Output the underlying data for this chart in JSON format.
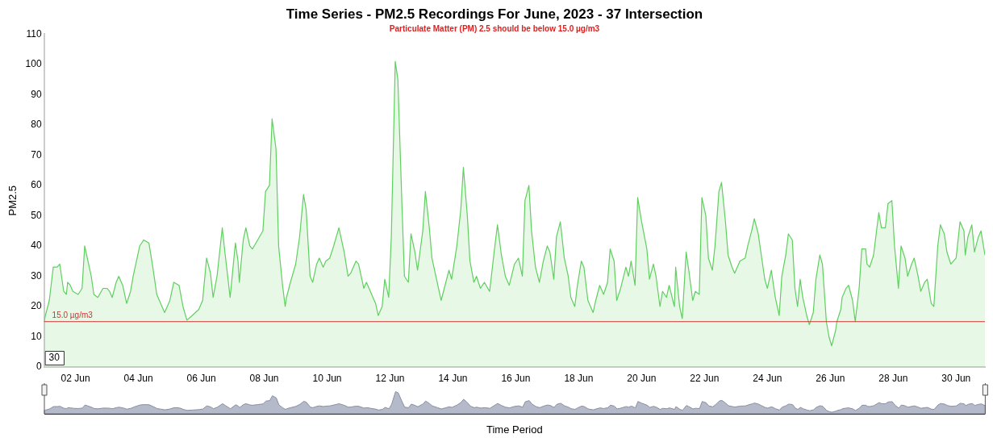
{
  "chart_data": {
    "type": "area",
    "title": "Time Series - PM2.5 Recordings For June, 2023 - 37 Intersection",
    "subtitle": "Particulate Matter (PM) 2.5 should be below 15.0 µg/m3",
    "xlabel": "Time Period",
    "ylabel": "PM2.5",
    "x": [
      "2023-06-01T00:00",
      "2023-06-01T01:00",
      "2023-06-01T04:00",
      "2023-06-01T07:00",
      "2023-06-01T10:00",
      "2023-06-01T12:00",
      "2023-06-01T13:00",
      "2023-06-01T15:00",
      "2023-06-01T17:00",
      "2023-06-01T18:00",
      "2023-06-01T20:00",
      "2023-06-01T22:00",
      "2023-06-02T02:00",
      "2023-06-02T05:00",
      "2023-06-02T07:00",
      "2023-06-02T09:00",
      "2023-06-02T12:00",
      "2023-06-02T14:00",
      "2023-06-02T17:00",
      "2023-06-02T21:00",
      "2023-06-03T00:00",
      "2023-06-03T02:00",
      "2023-06-03T04:00",
      "2023-06-03T07:00",
      "2023-06-03T09:00",
      "2023-06-03T12:00",
      "2023-06-03T15:00",
      "2023-06-03T18:00",
      "2023-06-03T20:00",
      "2023-06-03T23:00",
      "2023-06-04T01:00",
      "2023-06-04T04:00",
      "2023-06-04T08:00",
      "2023-06-04T11:00",
      "2023-06-04T14:00",
      "2023-06-04T17:00",
      "2023-06-04T20:00",
      "2023-06-05T00:00",
      "2023-06-05T03:00",
      "2023-06-05T07:00",
      "2023-06-05T10:00",
      "2023-06-05T13:00",
      "2023-06-05T17:00",
      "2023-06-05T22:00",
      "2023-06-06T01:00",
      "2023-06-06T04:00",
      "2023-06-06T07:00",
      "2023-06-06T09:00",
      "2023-06-06T12:00",
      "2023-06-06T16:00",
      "2023-06-06T18:00",
      "2023-06-06T22:00",
      "2023-06-07T02:00",
      "2023-06-07T04:00",
      "2023-06-07T05:00",
      "2023-06-07T08:00",
      "2023-06-07T10:00",
      "2023-06-07T13:00",
      "2023-06-07T15:00",
      "2023-06-07T19:00",
      "2023-06-07T23:00",
      "2023-06-08T01:00",
      "2023-06-08T04:00",
      "2023-06-08T06:00",
      "2023-06-08T09:00",
      "2023-06-08T11:00",
      "2023-06-08T14:00",
      "2023-06-08T16:00",
      "2023-06-08T17:00",
      "2023-06-08T20:00",
      "2023-06-09T00:00",
      "2023-06-09T03:00",
      "2023-06-09T06:00",
      "2023-06-09T08:00",
      "2023-06-09T11:00",
      "2023-06-09T13:00",
      "2023-06-09T16:00",
      "2023-06-09T18:00",
      "2023-06-09T21:00",
      "2023-06-09T23:00",
      "2023-06-10T02:00",
      "2023-06-10T05:00",
      "2023-06-10T09:00",
      "2023-06-10T13:00",
      "2023-06-10T16:00",
      "2023-06-10T18:00",
      "2023-06-10T22:00",
      "2023-06-11T00:00",
      "2023-06-11T04:00",
      "2023-06-11T06:00",
      "2023-06-11T09:00",
      "2023-06-11T13:00",
      "2023-06-11T15:00",
      "2023-06-11T18:00",
      "2023-06-11T20:00",
      "2023-06-11T23:00",
      "2023-06-12T01:00",
      "2023-06-12T04:00",
      "2023-06-12T06:00",
      "2023-06-12T09:00",
      "2023-06-12T11:00",
      "2023-06-12T14:00",
      "2023-06-12T16:00",
      "2023-06-12T19:00",
      "2023-06-12T21:00",
      "2023-06-13T01:00",
      "2023-06-13T03:00",
      "2023-06-13T06:00",
      "2023-06-13T08:00",
      "2023-06-13T12:00",
      "2023-06-13T15:00",
      "2023-06-13T18:00",
      "2023-06-13T21:00",
      "2023-06-13T23:00",
      "2023-06-14T03:00",
      "2023-06-14T06:00",
      "2023-06-14T08:00",
      "2023-06-14T11:00",
      "2023-06-14T13:00",
      "2023-06-14T16:00",
      "2023-06-14T18:00",
      "2023-06-14T21:00",
      "2023-06-15T00:00",
      "2023-06-15T04:00",
      "2023-06-15T08:00",
      "2023-06-15T10:00",
      "2023-06-15T13:00",
      "2023-06-15T16:00",
      "2023-06-15T19:00",
      "2023-06-15T23:00",
      "2023-06-16T02:00",
      "2023-06-16T05:00",
      "2023-06-16T07:00",
      "2023-06-16T10:00",
      "2023-06-16T12:00",
      "2023-06-16T15:00",
      "2023-06-16T18:00",
      "2023-06-16T21:00",
      "2023-06-17T00:00",
      "2023-06-17T02:00",
      "2023-06-17T05:00",
      "2023-06-17T07:00",
      "2023-06-17T10:00",
      "2023-06-17T13:00",
      "2023-06-17T16:00",
      "2023-06-17T18:00",
      "2023-06-17T21:00",
      "2023-06-17T23:00",
      "2023-06-18T02:00",
      "2023-06-18T04:00",
      "2023-06-18T07:00",
      "2023-06-18T11:00",
      "2023-06-18T13:00",
      "2023-06-18T16:00",
      "2023-06-18T19:00",
      "2023-06-18T22:00",
      "2023-06-19T00:00",
      "2023-06-19T03:00",
      "2023-06-19T05:00",
      "2023-06-19T08:00",
      "2023-06-19T12:00",
      "2023-06-19T14:00",
      "2023-06-19T16:00",
      "2023-06-19T19:00",
      "2023-06-19T21:00",
      "2023-06-20T00:00",
      "2023-06-20T04:00",
      "2023-06-20T06:00",
      "2023-06-20T09:00",
      "2023-06-20T11:00",
      "2023-06-20T14:00",
      "2023-06-20T16:00",
      "2023-06-20T19:00",
      "2023-06-20T21:00",
      "2023-06-21T01:00",
      "2023-06-21T02:00",
      "2023-06-21T05:00",
      "2023-06-21T07:00",
      "2023-06-21T10:00",
      "2023-06-21T12:00",
      "2023-06-21T15:00",
      "2023-06-21T17:00",
      "2023-06-21T20:00",
      "2023-06-21T22:00",
      "2023-06-22T01:00",
      "2023-06-22T03:00",
      "2023-06-22T06:00",
      "2023-06-22T08:00",
      "2023-06-22T11:00",
      "2023-06-22T13:00",
      "2023-06-22T16:00",
      "2023-06-22T18:00",
      "2023-06-22T21:00",
      "2023-06-22T23:00",
      "2023-06-23T03:00",
      "2023-06-23T07:00",
      "2023-06-23T09:00",
      "2023-06-23T12:00",
      "2023-06-23T14:00",
      "2023-06-23T17:00",
      "2023-06-23T19:00",
      "2023-06-23T22:00",
      "2023-06-24T00:00",
      "2023-06-24T03:00",
      "2023-06-24T06:00",
      "2023-06-24T09:00",
      "2023-06-24T11:00",
      "2023-06-24T14:00",
      "2023-06-24T16:00",
      "2023-06-24T19:00",
      "2023-06-24T21:00",
      "2023-06-24T23:00",
      "2023-06-25T01:00",
      "2023-06-25T03:00",
      "2023-06-25T06:00",
      "2023-06-25T08:00",
      "2023-06-25T11:00",
      "2023-06-25T13:00",
      "2023-06-25T16:00",
      "2023-06-25T18:00",
      "2023-06-25T21:00",
      "2023-06-25T23:00",
      "2023-06-26T01:00",
      "2023-06-26T04:00",
      "2023-06-26T05:00",
      "2023-06-26T08:00",
      "2023-06-26T09:00",
      "2023-06-26T12:00",
      "2023-06-26T14:00",
      "2023-06-26T17:00",
      "2023-06-26T19:00",
      "2023-06-26T22:00",
      "2023-06-27T00:00",
      "2023-06-27T03:00",
      "2023-06-27T04:00",
      "2023-06-27T06:00",
      "2023-06-27T09:00",
      "2023-06-27T11:00",
      "2023-06-27T13:00",
      "2023-06-27T15:00",
      "2023-06-27T18:00",
      "2023-06-27T20:00",
      "2023-06-27T23:00",
      "2023-06-28T01:00",
      "2023-06-28T04:00",
      "2023-06-28T06:00",
      "2023-06-28T09:00",
      "2023-06-28T11:00",
      "2023-06-28T14:00",
      "2023-06-28T16:00",
      "2023-06-28T19:00",
      "2023-06-28T21:00",
      "2023-06-29T00:00",
      "2023-06-29T02:00",
      "2023-06-29T05:00",
      "2023-06-29T07:00",
      "2023-06-29T10:00",
      "2023-06-29T12:00",
      "2023-06-29T15:00",
      "2023-06-29T17:00",
      "2023-06-29T20:00",
      "2023-06-29T22:00",
      "2023-06-30T00:00",
      "2023-06-30T03:00",
      "2023-06-30T06:00",
      "2023-06-30T07:00",
      "2023-06-30T09:00",
      "2023-06-30T12:00",
      "2023-06-30T14:00",
      "2023-06-30T17:00",
      "2023-06-30T19:00",
      "2023-06-30T22:00"
    ],
    "series": [
      {
        "color": "#5fcf5f",
        "values": [
          15,
          17,
          22,
          33,
          33,
          34,
          31,
          25,
          24,
          28,
          27,
          25,
          24,
          26,
          40,
          36,
          30,
          24,
          23,
          26,
          26,
          25,
          23,
          28,
          30,
          27,
          21,
          25,
          30,
          36,
          40,
          42,
          41,
          33,
          24,
          21,
          18,
          22,
          28,
          27,
          20,
          15.5,
          17,
          19,
          22,
          36,
          31,
          23,
          30,
          46,
          38,
          23,
          41,
          35,
          28,
          42,
          46,
          40,
          39,
          42,
          45,
          58,
          60,
          82,
          72,
          40,
          27,
          20,
          23,
          28,
          34,
          43,
          57,
          52,
          30,
          28,
          34,
          36,
          33,
          35,
          36,
          40,
          46,
          38,
          30,
          31,
          35,
          34,
          26,
          28,
          25,
          21,
          17,
          20,
          29,
          23,
          43,
          101,
          95,
          55,
          30,
          28,
          44,
          38,
          32,
          45,
          58,
          46,
          36,
          28,
          22,
          27,
          32,
          29,
          40,
          52,
          66,
          50,
          35,
          28,
          30,
          26,
          28,
          25,
          40,
          47,
          37,
          30,
          27,
          34,
          36,
          30,
          55,
          60,
          45,
          33,
          28,
          35,
          40,
          38,
          29,
          43,
          48,
          36,
          30,
          23,
          20,
          27,
          35,
          33,
          22,
          18,
          22,
          27,
          24,
          28,
          39,
          35,
          22,
          26,
          33,
          30,
          35,
          27,
          56,
          48,
          39,
          29,
          34,
          30,
          20,
          25,
          23,
          27,
          20,
          33,
          20,
          16,
          38,
          32,
          22,
          25,
          24,
          56,
          50,
          36,
          32,
          40,
          58,
          61,
          48,
          37,
          33,
          31,
          35,
          36,
          40,
          45,
          49,
          44,
          38,
          29,
          26,
          32,
          23,
          17,
          30,
          37,
          44,
          42,
          26,
          20,
          29,
          23,
          17,
          14,
          18,
          29,
          37,
          34,
          15,
          10,
          7,
          12,
          15,
          19,
          23,
          26,
          27,
          22,
          15,
          26,
          39,
          39,
          34,
          33,
          37,
          44,
          51,
          46,
          46,
          54,
          55,
          40,
          26,
          40,
          36,
          30,
          34,
          36,
          30,
          25,
          28,
          29,
          21,
          20,
          40,
          47,
          44,
          38,
          34,
          35,
          36,
          48,
          45,
          37,
          43,
          47,
          38,
          43,
          45,
          37
        ]
      }
    ],
    "xlim": [
      "2023-06-01T00:00",
      "2023-06-30T22:00"
    ],
    "xticks": [
      {
        "value": "2023-06-02",
        "label": "02 Jun"
      },
      {
        "value": "2023-06-04",
        "label": "04 Jun"
      },
      {
        "value": "2023-06-06",
        "label": "06 Jun"
      },
      {
        "value": "2023-06-08",
        "label": "08 Jun"
      },
      {
        "value": "2023-06-10",
        "label": "10 Jun"
      },
      {
        "value": "2023-06-12",
        "label": "12 Jun"
      },
      {
        "value": "2023-06-14",
        "label": "14 Jun"
      },
      {
        "value": "2023-06-16",
        "label": "16 Jun"
      },
      {
        "value": "2023-06-18",
        "label": "18 Jun"
      },
      {
        "value": "2023-06-20",
        "label": "20 Jun"
      },
      {
        "value": "2023-06-22",
        "label": "22 Jun"
      },
      {
        "value": "2023-06-24",
        "label": "24 Jun"
      },
      {
        "value": "2023-06-26",
        "label": "26 Jun"
      },
      {
        "value": "2023-06-28",
        "label": "28 Jun"
      },
      {
        "value": "2023-06-30",
        "label": "30 Jun"
      }
    ],
    "ylim": [
      0,
      110
    ],
    "yticks": [
      0,
      10,
      20,
      30,
      40,
      50,
      60,
      70,
      80,
      90,
      100,
      110
    ],
    "ref_lines": [
      {
        "axis": "y",
        "value": 15,
        "label": "15.0 µg/m3",
        "color": "#cc3333"
      }
    ],
    "annotations": [
      "30"
    ],
    "grid": false,
    "legend": false,
    "marker": "none",
    "line_style": "solid"
  }
}
